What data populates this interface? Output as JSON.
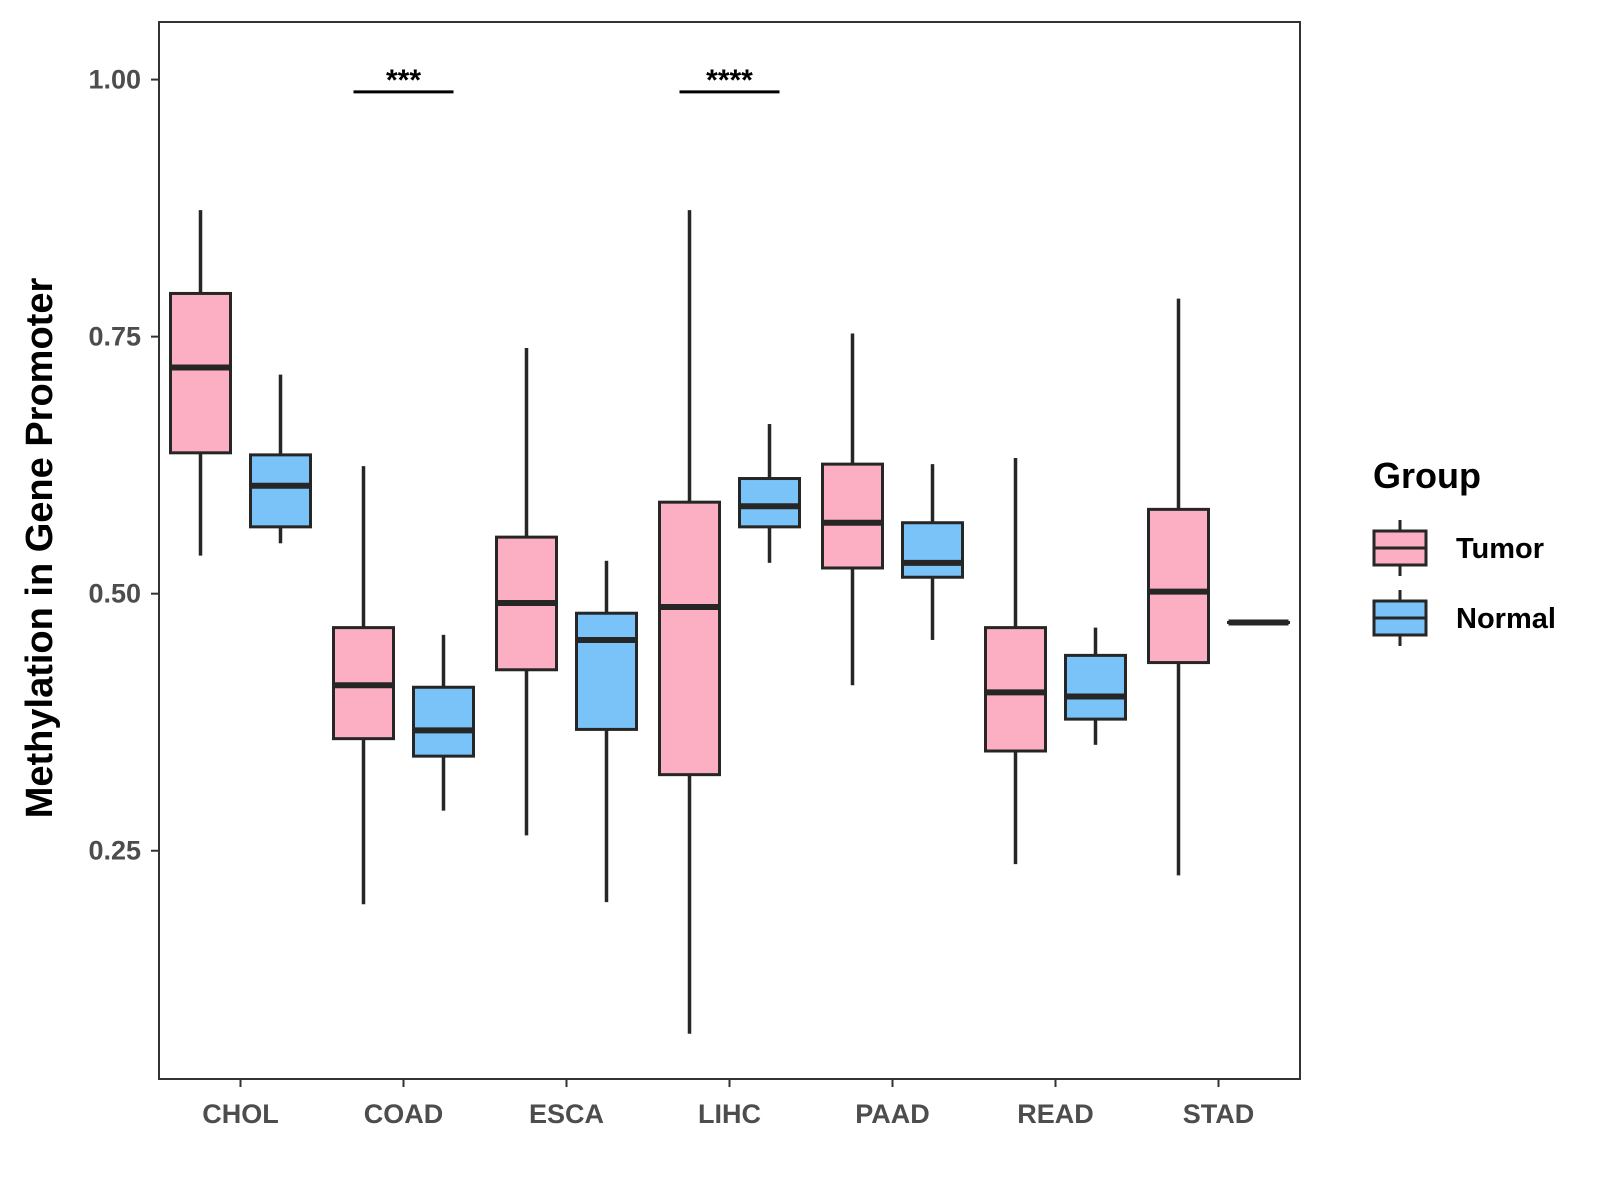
{
  "chart_data": {
    "type": "boxplot",
    "title": "",
    "xlabel": "",
    "ylabel": "Methylation in Gene Promoter",
    "ylim": [
      0.028,
      1.056
    ],
    "yticks": [
      0.25,
      0.5,
      0.75,
      1.0
    ],
    "ytick_labels": [
      "0.25",
      "0.50",
      "0.75",
      "1.00"
    ],
    "categories": [
      "CHOL",
      "COAD",
      "ESCA",
      "LIHC",
      "PAAD",
      "READ",
      "STAD"
    ],
    "legend": {
      "title": "Group",
      "position": "right",
      "items": [
        {
          "name": "Tumor",
          "color": "#FCAFC2"
        },
        {
          "name": "Normal",
          "color": "#7AC3F9"
        }
      ]
    },
    "series": [
      {
        "name": "Tumor",
        "color": "#FCAFC2",
        "boxes": [
          {
            "category": "CHOL",
            "whisker_low": 0.537,
            "q1": 0.637,
            "median": 0.72,
            "q3": 0.792,
            "whisker_high": 0.873
          },
          {
            "category": "COAD",
            "whisker_low": 0.198,
            "q1": 0.359,
            "median": 0.411,
            "q3": 0.467,
            "whisker_high": 0.624
          },
          {
            "category": "ESCA",
            "whisker_low": 0.265,
            "q1": 0.426,
            "median": 0.491,
            "q3": 0.555,
            "whisker_high": 0.739
          },
          {
            "category": "LIHC",
            "whisker_low": 0.072,
            "q1": 0.324,
            "median": 0.487,
            "q3": 0.589,
            "whisker_high": 0.873
          },
          {
            "category": "PAAD",
            "whisker_low": 0.411,
            "q1": 0.525,
            "median": 0.569,
            "q3": 0.626,
            "whisker_high": 0.753
          },
          {
            "category": "READ",
            "whisker_low": 0.237,
            "q1": 0.347,
            "median": 0.404,
            "q3": 0.467,
            "whisker_high": 0.632
          },
          {
            "category": "STAD",
            "whisker_low": 0.226,
            "q1": 0.433,
            "median": 0.502,
            "q3": 0.582,
            "whisker_high": 0.787
          }
        ]
      },
      {
        "name": "Normal",
        "color": "#7AC3F9",
        "boxes": [
          {
            "category": "CHOL",
            "whisker_low": 0.549,
            "q1": 0.565,
            "median": 0.605,
            "q3": 0.635,
            "whisker_high": 0.713
          },
          {
            "category": "COAD",
            "whisker_low": 0.289,
            "q1": 0.342,
            "median": 0.367,
            "q3": 0.409,
            "whisker_high": 0.46
          },
          {
            "category": "ESCA",
            "whisker_low": 0.2,
            "q1": 0.368,
            "median": 0.455,
            "q3": 0.481,
            "whisker_high": 0.532
          },
          {
            "category": "LIHC",
            "whisker_low": 0.53,
            "q1": 0.565,
            "median": 0.585,
            "q3": 0.612,
            "whisker_high": 0.665
          },
          {
            "category": "PAAD",
            "whisker_low": 0.455,
            "q1": 0.516,
            "median": 0.53,
            "q3": 0.569,
            "whisker_high": 0.626
          },
          {
            "category": "READ",
            "whisker_low": 0.353,
            "q1": 0.378,
            "median": 0.4,
            "q3": 0.44,
            "whisker_high": 0.467
          },
          {
            "category": "STAD",
            "whisker_low": 0.472,
            "q1": 0.472,
            "median": 0.472,
            "q3": 0.472,
            "whisker_high": 0.472
          }
        ]
      }
    ],
    "annotations": [
      {
        "category": "COAD",
        "label": "***",
        "y": 0.988
      },
      {
        "category": "LIHC",
        "label": "****",
        "y": 0.988
      }
    ]
  }
}
